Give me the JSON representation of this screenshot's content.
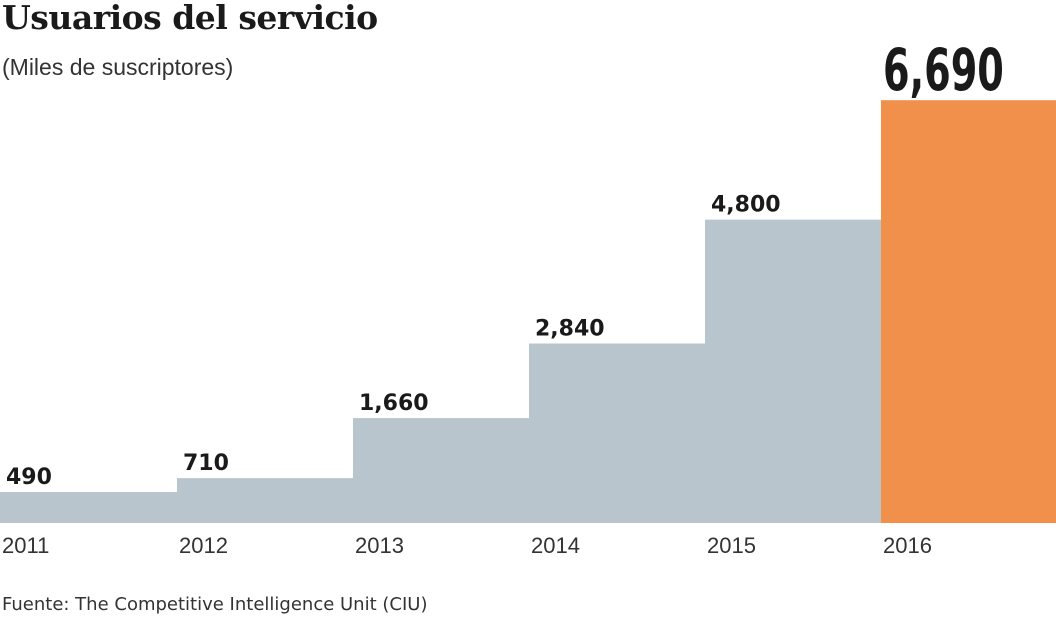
{
  "chart_data": {
    "type": "bar",
    "title": "Usuarios del servicio",
    "subtitle": "(Miles de suscriptores)",
    "source": "Fuente: The Competitive Intelligence Unit (CIU)",
    "categories": [
      "2011",
      "2012",
      "2013",
      "2014",
      "2015",
      "2016"
    ],
    "values": [
      490,
      710,
      1660,
      2840,
      4800,
      6690
    ],
    "value_labels": [
      "490",
      "710",
      "1,660",
      "2,840",
      "4,800",
      "6,690"
    ],
    "xlabel": "",
    "ylabel": "",
    "ylim": [
      0,
      8250
    ],
    "grid": false,
    "colors": {
      "default": "#b8c5cc",
      "highlight": "#f0904a",
      "text": "#1a1a1a"
    },
    "highlight_index": 5
  }
}
